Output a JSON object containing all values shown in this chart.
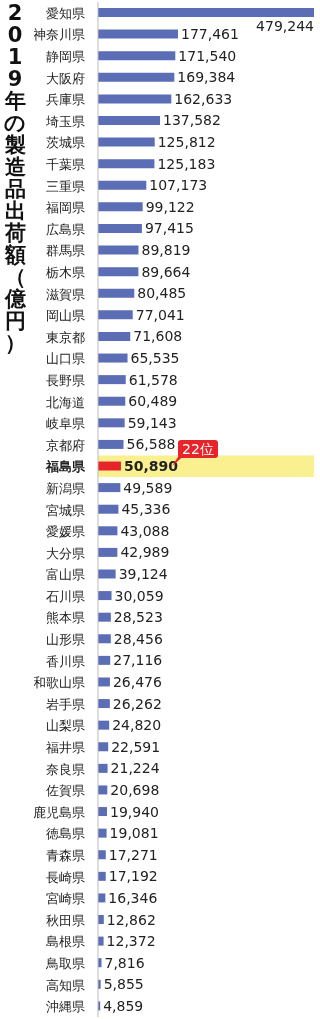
{
  "chart_data": {
    "type": "bar",
    "orientation": "horizontal",
    "title": "2019年の製造品出荷額（億円）",
    "categories": [
      "愛知県",
      "神奈川県",
      "静岡県",
      "大阪府",
      "兵庫県",
      "埼玉県",
      "茨城県",
      "千葉県",
      "三重県",
      "福岡県",
      "広島県",
      "群馬県",
      "栃木県",
      "滋賀県",
      "岡山県",
      "東京都",
      "山口県",
      "長野県",
      "北海道",
      "岐阜県",
      "京都府",
      "福島県",
      "新潟県",
      "宮城県",
      "愛媛県",
      "大分県",
      "富山県",
      "石川県",
      "熊本県",
      "山形県",
      "香川県",
      "和歌山県",
      "岩手県",
      "山梨県",
      "福井県",
      "奈良県",
      "佐賀県",
      "鹿児島県",
      "徳島県",
      "青森県",
      "長崎県",
      "宮崎県",
      "秋田県",
      "島根県",
      "鳥取県",
      "高知県",
      "沖縄県"
    ],
    "values": [
      479244,
      177461,
      171540,
      169384,
      162633,
      137582,
      125812,
      125183,
      107173,
      99122,
      97415,
      89819,
      89664,
      80485,
      77041,
      71608,
      65535,
      61578,
      60489,
      59143,
      56588,
      50890,
      49589,
      45336,
      43088,
      42989,
      39124,
      30059,
      28523,
      28456,
      27116,
      26476,
      26262,
      24820,
      22591,
      21224,
      20698,
      19940,
      19081,
      17271,
      17192,
      16346,
      12862,
      12372,
      7816,
      5855,
      4859
    ],
    "value_labels": [
      "479,244",
      "177,461",
      "171,540",
      "169,384",
      "162,633",
      "137,582",
      "125,812",
      "125,183",
      "107,173",
      "99,122",
      "97,415",
      "89,819",
      "89,664",
      "80,485",
      "77,041",
      "71,608",
      "65,535",
      "61,578",
      "60,489",
      "59,143",
      "56,588",
      "50,890",
      "49,589",
      "45,336",
      "43,088",
      "42,989",
      "39,124",
      "30,059",
      "28,523",
      "28,456",
      "27,116",
      "26,476",
      "26,262",
      "24,820",
      "22,591",
      "21,224",
      "20,698",
      "19,940",
      "19,081",
      "17,271",
      "17,192",
      "16,346",
      "12,862",
      "12,372",
      "7,816",
      "5,855",
      "4,859"
    ],
    "colors": [
      "#5b6db5",
      "#5b6db5",
      "#5b6db5",
      "#5b6db5",
      "#5b6db5",
      "#5b6db5",
      "#5b6db5",
      "#5b6db5",
      "#5b6db5",
      "#5b6db5",
      "#5b6db5",
      "#5b6db5",
      "#5b6db5",
      "#5b6db5",
      "#5b6db5",
      "#5b6db5",
      "#5b6db5",
      "#5b6db5",
      "#5b6db5",
      "#5b6db5",
      "#5b6db5",
      "#e8242b",
      "#5b6db5",
      "#5b6db5",
      "#5b6db5",
      "#5b6db5",
      "#5b6db5",
      "#5b6db5",
      "#5b6db5",
      "#5b6db5",
      "#5b6db5",
      "#5b6db5",
      "#5b6db5",
      "#5b6db5",
      "#5b6db5",
      "#5b6db5",
      "#5b6db5",
      "#5b6db5",
      "#5b6db5",
      "#5b6db5",
      "#5b6db5",
      "#5b6db5",
      "#5b6db5",
      "#5b6db5",
      "#5b6db5",
      "#5b6db5",
      "#5b6db5"
    ],
    "tick_labels": "y",
    "bands": [
      {
        "axis": "y",
        "from": "福島県",
        "to": "福島県",
        "color": "#fbf08f"
      }
    ],
    "annotations": [
      "22位"
    ]
  }
}
